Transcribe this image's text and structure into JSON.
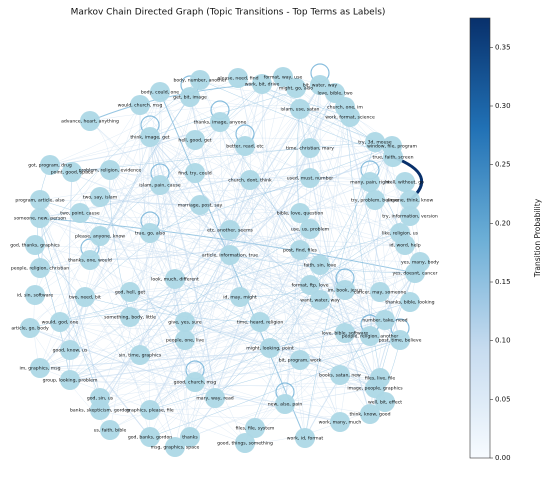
{
  "chart_data": {
    "type": "network",
    "title": "Markov Chain Directed Graph (Topic Transitions - Top Terms as Labels)",
    "nodes": [
      "body, number, another",
      "please, need, find",
      "format, way, use",
      "work, bit, drive",
      "might, go, also",
      "bit, water, way",
      "love, bible, two",
      "body, could, one",
      "get, bit, image",
      "would, church, msg",
      "islam, use, satan",
      "church, one, im",
      "work, format, science",
      "advance, heart, anything",
      "thanks, image, anyone",
      "think, image, get",
      "hell, good, get",
      "better, read, etc",
      "time, christian, mary",
      "try, 3d, mouse",
      "window, file, program",
      "true, faith, screen",
      "got, program, drug",
      "point, good, space",
      "problem, religion, evidence",
      "find, try, could",
      "islam, pain, cause",
      "church, dont, think",
      "used, must, number",
      "many, pain, right",
      "try, problem, believe",
      "well, without, go",
      "anyone, think, know",
      "program, article, also",
      "two, say, islam",
      "marriage, post, say",
      "bible, love, question",
      "try, information, version",
      "someone, new, person",
      "two, point, cause",
      "true, go, also",
      "please, anyone, know",
      "etc, another, seems",
      "use, us, problem",
      "like, religion, us",
      "id, word, help",
      "god, thanks, graphics",
      "people, religion, christian",
      "thanks, one, would",
      "article, information, true",
      "post, find, files",
      "faith, sin, love",
      "yes, many, body",
      "yes, doesnt, cancer",
      "look, much, different",
      "format, ftp, love",
      "im, book, jesus",
      "cancer, may, someone",
      "thanks, bible, looking",
      "id, sin, software",
      "two, need, bit",
      "want, water, way",
      "god, hell, get",
      "id, may, might",
      "something, body, little",
      "give, yes, sure",
      "time, heard, religion",
      "number, take, need",
      "article, go, body",
      "would, god, one",
      "love, bible, software",
      "people, religion, another",
      "post, time, believe",
      "people, one, live",
      "might, looking, point",
      "good, know, us",
      "sin, time, graphics",
      "bit, program, work",
      "books, satan, new",
      "im, graphics, msg",
      "group, looking, problem",
      "files, live, file",
      "god, sin, us",
      "good, church, msg",
      "mary, way, read",
      "image, people, graphics",
      "well, bit, effect",
      "banks, skepticism, gordon",
      "graphics, please, file",
      "new, also, pain",
      "think, know, good",
      "work, many, much",
      "us, faith, bible",
      "god, banks, gordon",
      "thanks",
      "msg, graphics, space",
      "files, file, system",
      "good, things, something",
      "work, id, format"
    ],
    "colorbar": {
      "label": "Transition Probability",
      "colormap": "Blues",
      "clim": [
        0,
        0.375
      ],
      "ticks": [
        {
          "value": 0,
          "label": "0.00"
        },
        {
          "value": 0.05,
          "label": "0.05"
        },
        {
          "value": 0.1,
          "label": "0.10"
        },
        {
          "value": 0.15,
          "label": "0.15"
        },
        {
          "value": 0.2,
          "label": "0.20"
        },
        {
          "value": 0.25,
          "label": "0.25"
        },
        {
          "value": 0.3,
          "label": "0.30"
        },
        {
          "value": 0.35,
          "label": "0.35"
        }
      ]
    }
  }
}
